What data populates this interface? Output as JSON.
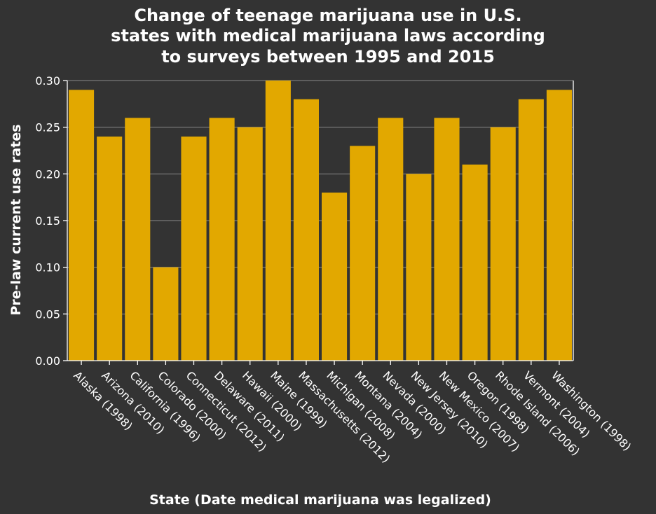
{
  "chart_data": {
    "type": "bar",
    "title_lines": [
      "Change of teenage marijuana use in U.S.",
      "states with medical marijuana laws according",
      "to surveys between 1995 and 2015"
    ],
    "xlabel": "State (Date medical marijuana was legalized)",
    "ylabel": "Pre-law current use rates",
    "ylim": [
      0,
      0.3
    ],
    "yticks": [
      "0.00",
      "0.05",
      "0.10",
      "0.15",
      "0.20",
      "0.25",
      "0.30"
    ],
    "grid": true,
    "bar_color": "#e2a800",
    "categories": [
      "Alaska (1998)",
      "Arizona (2010)",
      "California (1996)",
      "Colorado (2000)",
      "Connecticut (2012)",
      "Delaware (2011)",
      "Hawaii (2000)",
      "Maine (1999)",
      "Massachusetts (2012)",
      "Michigan (2008)",
      "Montana (2004)",
      "Nevada (2000)",
      "New Jersey (2010)",
      "New Mexico (2007)",
      "Oregon (1998)",
      "Rhode Island (2006)",
      "Vermont (2004)",
      "Washington (1998)"
    ],
    "values": [
      0.29,
      0.24,
      0.26,
      0.1,
      0.24,
      0.26,
      0.25,
      0.3,
      0.28,
      0.18,
      0.23,
      0.26,
      0.2,
      0.26,
      0.21,
      0.25,
      0.28,
      0.29
    ]
  }
}
